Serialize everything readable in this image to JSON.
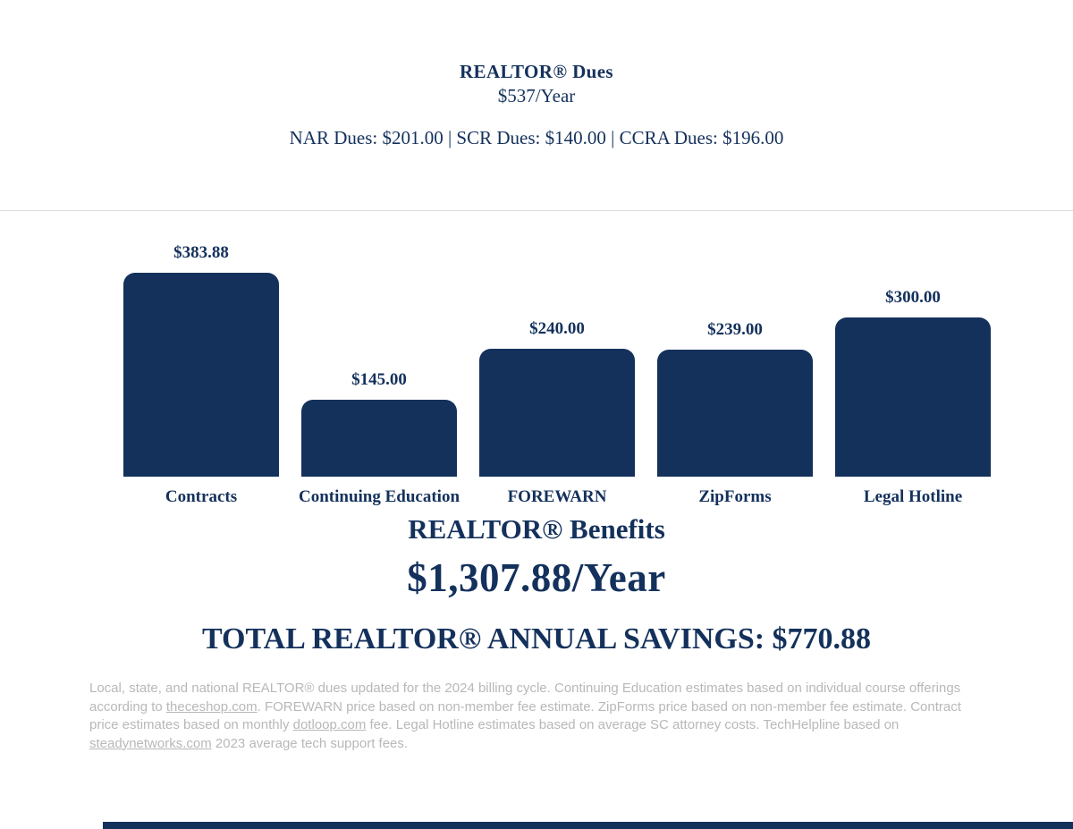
{
  "colors": {
    "navy": "#14315c",
    "footnote_gray": "#b8b8b8",
    "divider_gray": "#dcdcdc",
    "background": "#ffffff"
  },
  "header": {
    "title": "REALTOR® Dues",
    "subtitle": "$537/Year",
    "breakdown": "NAR Dues: $201.00 | SCR Dues: $140.00 | CCRA Dues: $196.00"
  },
  "chart_data": {
    "type": "bar",
    "categories": [
      "Contracts",
      "Continuing Education",
      "FOREWARN",
      "ZipForms",
      "Legal Hotline"
    ],
    "values": [
      383.88,
      145.0,
      240.0,
      239.0,
      300.0
    ],
    "value_labels": [
      "$383.88",
      "$145.00",
      "$240.00",
      "$239.00",
      "$300.00"
    ],
    "title": "REALTOR® Benefits",
    "xlabel": "",
    "ylabel": "",
    "ylim": [
      0,
      383.88
    ],
    "grid": false,
    "legend": "none",
    "bar_color": "#14315c"
  },
  "summary": {
    "benefits_title": "REALTOR® Benefits",
    "benefits_total": "$1,307.88/Year",
    "savings_line": "TOTAL REALTOR® ANNUAL SAVINGS: $770.88"
  },
  "footnote": {
    "segments": [
      {
        "text": "Local, state, and national REALTOR®  dues updated for the 2024 billing cycle. Continuing Education estimates based on individual course offerings according to ",
        "link": false
      },
      {
        "text": "theceshop.com",
        "link": true
      },
      {
        "text": ". FOREWARN price based on non-member fee estimate. ZipForms price based on non-member fee estimate. Contract price estimates based on monthly ",
        "link": false
      },
      {
        "text": "dotloop.com",
        "link": true
      },
      {
        "text": " fee. Legal Hotline estimates based on average SC attorney costs. TechHelpline based on ",
        "link": false
      },
      {
        "text": "steadynetworks.com",
        "link": true
      },
      {
        "text": " 2023 average tech support fees.",
        "link": false
      }
    ]
  }
}
